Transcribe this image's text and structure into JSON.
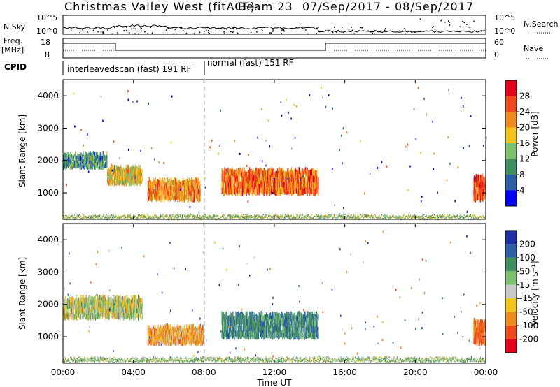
{
  "title": {
    "station": "Christmas Valley West (fitACF)",
    "beam": "Beam 23",
    "dates": "07/Sep/2017 - 08/Sep/2017"
  },
  "top_panel": {
    "left_label": "N.Sky",
    "right_label": "N.Search",
    "y_ticks_left": [
      "10^5",
      "10^0"
    ],
    "y_ticks_right": [
      "10^5",
      "10^0"
    ]
  },
  "freq_panel": {
    "left_label_1": "Freq.",
    "left_label_2": "[MHz]",
    "right_label": "Nave",
    "y_ticks_left": [
      "18",
      "8"
    ],
    "y_ticks_right": [
      "60",
      "0"
    ]
  },
  "cpid": {
    "label": "CPID",
    "modes": [
      "interleavedscan (fast) 191 RF",
      "normal (fast) 151 RF"
    ]
  },
  "x_axis": {
    "label": "Time UT",
    "ticks": [
      "00:00",
      "04:00",
      "08:00",
      "12:00",
      "16:00",
      "20:00",
      "00:00"
    ]
  },
  "colors": {
    "power": [
      "#0000ff",
      "#2b5fa8",
      "#3f8f5f",
      "#7cc16b",
      "#f0c419",
      "#f08a1c",
      "#f04a1c",
      "#e8001c"
    ],
    "velocity": [
      "#e8001c",
      "#f04a1c",
      "#f08a1c",
      "#f0c419",
      "#c8c8c8",
      "#7cc16b",
      "#3f8f5f",
      "#2b5fa8",
      "#1c2ea8"
    ]
  },
  "chart_data": [
    {
      "type": "heatmap",
      "name_panel": "power",
      "ylabel": "Slant Range [km]",
      "y_ticks": [
        "4000",
        "3000",
        "2000",
        "1000"
      ],
      "colorbar_label": "Power [dB]",
      "colorbar_ticks": [
        "28",
        "24",
        "20",
        "16",
        "12",
        "8",
        "4"
      ],
      "xlim": [
        "00:00",
        "00:00"
      ],
      "ylim": [
        180,
        4500
      ],
      "regions": [
        {
          "t0": 0.0,
          "t1": 2.5,
          "r0": 1700,
          "r1": 2300,
          "value": 10
        },
        {
          "t0": 2.5,
          "t1": 4.5,
          "r0": 1200,
          "r1": 1900,
          "value": 18
        },
        {
          "t0": 4.8,
          "t1": 7.8,
          "r0": 700,
          "r1": 1500,
          "value": 22
        },
        {
          "t0": 9.0,
          "t1": 14.5,
          "r0": 900,
          "r1": 1800,
          "value": 24
        },
        {
          "t0": 23.3,
          "t1": 24.0,
          "r0": 700,
          "r1": 1600,
          "value": 26
        },
        {
          "t0": 0.0,
          "t1": 24.0,
          "r0": 200,
          "r1": 350,
          "value": 14
        }
      ]
    },
    {
      "type": "heatmap",
      "name_panel": "velocity",
      "ylabel": "Slant Range [km]",
      "y_ticks": [
        "4000",
        "3000",
        "2000",
        "1000"
      ],
      "colorbar_label": "Velocity [m s⁻¹]",
      "colorbar_ticks": [
        "200",
        "100",
        "50",
        "15",
        "-15",
        "-50",
        "-100",
        "-200"
      ],
      "xlim": [
        "00:00",
        "00:00"
      ],
      "ylim": [
        180,
        4500
      ],
      "regions": [
        {
          "t0": 0.0,
          "t1": 4.5,
          "r0": 1500,
          "r1": 2300,
          "value": 0
        },
        {
          "t0": 4.8,
          "t1": 8.0,
          "r0": 700,
          "r1": 1400,
          "value": -50
        },
        {
          "t0": 9.0,
          "t1": 14.5,
          "r0": 900,
          "r1": 1800,
          "value": 80
        },
        {
          "t0": 23.3,
          "t1": 24.0,
          "r0": 700,
          "r1": 1600,
          "value": -120
        },
        {
          "t0": 0.0,
          "t1": 24.0,
          "r0": 200,
          "r1": 400,
          "value": 30
        }
      ]
    }
  ]
}
